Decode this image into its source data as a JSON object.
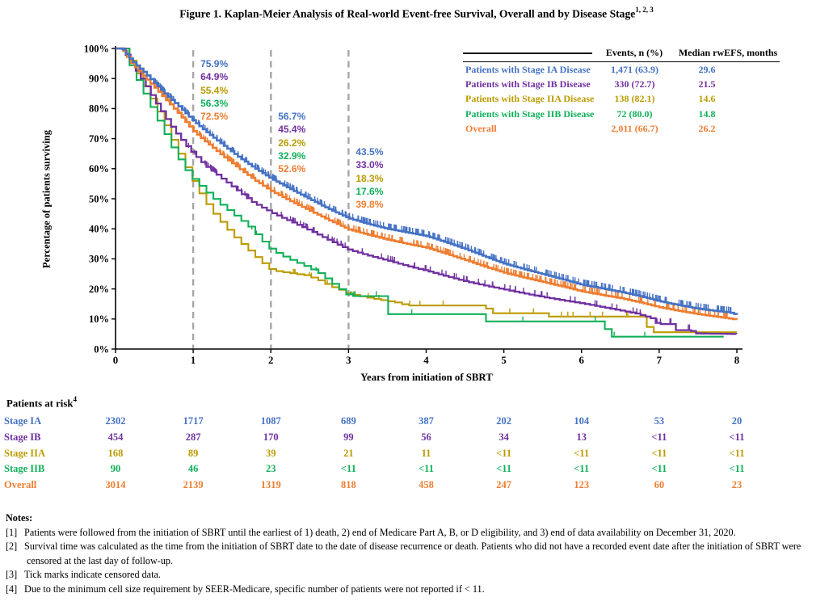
{
  "title": {
    "text": "Figure 1. Kaplan-Meier Analysis of Real-world Event-free Survival, Overall and by Disease Stage",
    "superscript": "1, 2, 3"
  },
  "colors": {
    "stage_ia": "#4472C4",
    "stage_ib": "#7030A0",
    "stage_iia": "#BC9B00",
    "stage_iib": "#10B059",
    "overall": "#ED7D31",
    "reference_line": "#A6A6A6",
    "axis": "#000000"
  },
  "chart_data": {
    "type": "line",
    "subtype": "kaplan-meier-step",
    "title": "Kaplan-Meier Analysis of Real-world Event-free Survival, Overall and by Disease Stage",
    "xlabel": "Years from initiation of SBRT",
    "ylabel": "Percentage of patients surviving",
    "xlim": [
      0,
      8
    ],
    "ylim": [
      0,
      100
    ],
    "grid": false,
    "legend_position": "top-right",
    "xticks": [
      "0",
      "1",
      "2",
      "3",
      "4",
      "5",
      "6",
      "7",
      "8"
    ],
    "yticks": [
      "0%",
      "10%",
      "20%",
      "30%",
      "40%",
      "50%",
      "60%",
      "70%",
      "80%",
      "90%",
      "100%"
    ],
    "reference_lines_x": [
      1,
      2,
      3
    ],
    "series": [
      {
        "name": "Stage IA",
        "color": "#4472C4",
        "survival_pct_at_years_1_2_3": [
          75.9,
          56.7,
          43.5
        ],
        "points": [
          [
            0,
            100
          ],
          [
            0.08,
            100
          ],
          [
            0.2,
            96
          ],
          [
            0.35,
            92.5
          ],
          [
            0.5,
            88.5
          ],
          [
            0.65,
            84.5
          ],
          [
            0.8,
            81
          ],
          [
            1,
            75.9
          ],
          [
            1.2,
            71.5
          ],
          [
            1.4,
            67.5
          ],
          [
            1.6,
            63.5
          ],
          [
            1.8,
            60
          ],
          [
            2,
            56.7
          ],
          [
            2.25,
            53.2
          ],
          [
            2.5,
            49.8
          ],
          [
            2.75,
            46.5
          ],
          [
            3,
            43.5
          ],
          [
            3.25,
            41.6
          ],
          [
            3.5,
            40
          ],
          [
            3.75,
            38.8
          ],
          [
            4,
            37.6
          ],
          [
            4.25,
            35.5
          ],
          [
            4.5,
            33.3
          ],
          [
            4.75,
            30.8
          ],
          [
            5,
            28.4
          ],
          [
            5.25,
            26.6
          ],
          [
            5.5,
            24.9
          ],
          [
            5.75,
            23.2
          ],
          [
            6,
            21.4
          ],
          [
            6.25,
            20.2
          ],
          [
            6.5,
            19
          ],
          [
            6.75,
            17.6
          ],
          [
            7,
            15.9
          ],
          [
            7.25,
            14.6
          ],
          [
            7.5,
            13.4
          ],
          [
            7.75,
            12.6
          ],
          [
            7.9,
            12.2
          ],
          [
            8,
            11.4
          ]
        ]
      },
      {
        "name": "Stage IB",
        "color": "#7030A0",
        "survival_pct_at_years_1_2_3": [
          64.9,
          45.4,
          33.0
        ],
        "points": [
          [
            0,
            100
          ],
          [
            0.08,
            100
          ],
          [
            0.2,
            95
          ],
          [
            0.3,
            91
          ],
          [
            0.4,
            87
          ],
          [
            0.5,
            82.5
          ],
          [
            0.6,
            78.5
          ],
          [
            0.7,
            74.5
          ],
          [
            0.8,
            71
          ],
          [
            0.9,
            67.8
          ],
          [
            1,
            64.9
          ],
          [
            1.15,
            61
          ],
          [
            1.35,
            57
          ],
          [
            1.55,
            53
          ],
          [
            1.75,
            49
          ],
          [
            2,
            45.4
          ],
          [
            2.25,
            42.4
          ],
          [
            2.5,
            39.4
          ],
          [
            2.75,
            36.1
          ],
          [
            3,
            33
          ],
          [
            3.25,
            31.1
          ],
          [
            3.5,
            29.4
          ],
          [
            3.75,
            27.6
          ],
          [
            4,
            26
          ],
          [
            4.25,
            24.2
          ],
          [
            4.5,
            22.5
          ],
          [
            4.75,
            21.1
          ],
          [
            5,
            19.8
          ],
          [
            5.25,
            18.5
          ],
          [
            5.5,
            17.3
          ],
          [
            5.75,
            16.2
          ],
          [
            6,
            15.2
          ],
          [
            6.25,
            14
          ],
          [
            6.5,
            12.8
          ],
          [
            6.7,
            11.8
          ],
          [
            6.9,
            10.2
          ],
          [
            6.97,
            8.3
          ],
          [
            7.17,
            8.3
          ],
          [
            7.21,
            6.3
          ],
          [
            7.4,
            6.3
          ],
          [
            7.44,
            5.2
          ],
          [
            8,
            5
          ]
        ]
      },
      {
        "name": "Stage IIA",
        "color": "#BC9B00",
        "survival_pct_at_years_1_2_3": [
          55.4,
          26.2,
          18.3
        ],
        "points": [
          [
            0,
            100
          ],
          [
            0.1,
            100
          ],
          [
            0.22,
            94
          ],
          [
            0.35,
            88
          ],
          [
            0.5,
            81
          ],
          [
            0.62,
            75
          ],
          [
            0.75,
            68
          ],
          [
            0.88,
            61.5
          ],
          [
            1,
            55.4
          ],
          [
            1.12,
            50
          ],
          [
            1.25,
            45.3
          ],
          [
            1.4,
            40.8
          ],
          [
            1.55,
            36.6
          ],
          [
            1.7,
            33
          ],
          [
            1.85,
            29.4
          ],
          [
            2,
            26.2
          ],
          [
            2.2,
            25.4
          ],
          [
            2.45,
            24.5
          ],
          [
            2.6,
            23
          ],
          [
            2.75,
            21
          ],
          [
            2.9,
            19.5
          ],
          [
            3,
            18.3
          ],
          [
            3.3,
            16.8
          ],
          [
            3.6,
            15.5
          ],
          [
            3.75,
            14.5
          ],
          [
            4.75,
            14.5
          ],
          [
            4.8,
            11.9
          ],
          [
            5.5,
            11.9
          ],
          [
            5.56,
            10.8
          ],
          [
            6.8,
            10.8
          ],
          [
            6.86,
            5.6
          ],
          [
            8,
            5.6
          ]
        ]
      },
      {
        "name": "Stage IIB",
        "color": "#10B059",
        "survival_pct_at_years_1_2_3": [
          56.3,
          32.9,
          17.6
        ],
        "points": [
          [
            0,
            100
          ],
          [
            0.1,
            100
          ],
          [
            0.2,
            93
          ],
          [
            0.3,
            88
          ],
          [
            0.4,
            83
          ],
          [
            0.5,
            78
          ],
          [
            0.6,
            73
          ],
          [
            0.7,
            68
          ],
          [
            0.8,
            63.5
          ],
          [
            0.9,
            59.5
          ],
          [
            1,
            56.3
          ],
          [
            1.15,
            52.5
          ],
          [
            1.3,
            49
          ],
          [
            1.5,
            45
          ],
          [
            1.7,
            41
          ],
          [
            1.85,
            36.8
          ],
          [
            2,
            32.9
          ],
          [
            2.2,
            30.2
          ],
          [
            2.4,
            28
          ],
          [
            2.6,
            25.5
          ],
          [
            2.8,
            21.5
          ],
          [
            3,
            17.6
          ],
          [
            3.42,
            17.6
          ],
          [
            3.47,
            11.6
          ],
          [
            4.7,
            11.6
          ],
          [
            4.75,
            9.2
          ],
          [
            6.28,
            9.2
          ],
          [
            6.32,
            4.1
          ],
          [
            7.84,
            4.1
          ],
          [
            7.87,
            0.3
          ]
        ]
      },
      {
        "name": "Overall",
        "color": "#ED7D31",
        "survival_pct_at_years_1_2_3": [
          72.5,
          52.6,
          39.8
        ],
        "points": [
          [
            0,
            100
          ],
          [
            0.08,
            100
          ],
          [
            0.2,
            95.2
          ],
          [
            0.35,
            91
          ],
          [
            0.5,
            87
          ],
          [
            0.65,
            82.8
          ],
          [
            0.8,
            78.6
          ],
          [
            1,
            72.5
          ],
          [
            1.2,
            68
          ],
          [
            1.4,
            63.8
          ],
          [
            1.6,
            59.8
          ],
          [
            1.8,
            56
          ],
          [
            2,
            52.6
          ],
          [
            2.25,
            49.2
          ],
          [
            2.5,
            46
          ],
          [
            2.75,
            42.8
          ],
          [
            3,
            39.8
          ],
          [
            3.25,
            38
          ],
          [
            3.5,
            36.4
          ],
          [
            3.75,
            35
          ],
          [
            4,
            33.7
          ],
          [
            4.25,
            31.7
          ],
          [
            4.5,
            29.6
          ],
          [
            4.75,
            27.4
          ],
          [
            5,
            25.4
          ],
          [
            5.25,
            23.8
          ],
          [
            5.5,
            22.3
          ],
          [
            5.75,
            20.8
          ],
          [
            6,
            19.2
          ],
          [
            6.25,
            18
          ],
          [
            6.5,
            16.9
          ],
          [
            6.75,
            15.5
          ],
          [
            7,
            13.9
          ],
          [
            7.25,
            12.7
          ],
          [
            7.5,
            11.6
          ],
          [
            7.75,
            10.7
          ],
          [
            8,
            9.8
          ]
        ]
      }
    ],
    "annotations": [
      {
        "at_year": 1,
        "labels": [
          "75.9%",
          "64.9%",
          "55.4%",
          "56.3%",
          "72.5%"
        ]
      },
      {
        "at_year": 2,
        "labels": [
          "56.7%",
          "45.4%",
          "26.2%",
          "32.9%",
          "52.6%"
        ]
      },
      {
        "at_year": 3,
        "labels": [
          "43.5%",
          "33.0%",
          "18.3%",
          "17.6%",
          "39.8%"
        ]
      }
    ]
  },
  "legend_table": {
    "headers": [
      "Events, n (%)",
      "Median rwEFS, months"
    ],
    "rows": [
      {
        "label": "Patients with Stage IA Disease",
        "events": "1,471 (63.9)",
        "median": "29.6",
        "color": "#4472C4"
      },
      {
        "label": "Patients with Stage IB Disease",
        "events": "330 (72.7)",
        "median": "21.5",
        "color": "#7030A0"
      },
      {
        "label": "Patients with Stage IIA Disease",
        "events": "138 (82.1)",
        "median": "14.6",
        "color": "#BC9B00"
      },
      {
        "label": "Patients with Stage IIB Disease",
        "events": "72 (80.0)",
        "median": "14.8",
        "color": "#10B059"
      },
      {
        "label": "Overall",
        "events": "2,011 (66.7)",
        "median": "26.2",
        "color": "#ED7D31"
      }
    ]
  },
  "risk_table": {
    "title": "Patients at risk",
    "superscript": "4",
    "rows": [
      {
        "label": "Stage IA",
        "color": "#4472C4",
        "values": [
          "2302",
          "1717",
          "1087",
          "689",
          "387",
          "202",
          "104",
          "53",
          "20"
        ]
      },
      {
        "label": "Stage IB",
        "color": "#7030A0",
        "values": [
          "454",
          "287",
          "170",
          "99",
          "56",
          "34",
          "13",
          "<11",
          "<11"
        ]
      },
      {
        "label": "Stage IIA",
        "color": "#BC9B00",
        "values": [
          "168",
          "89",
          "39",
          "21",
          "11",
          "<11",
          "<11",
          "<11",
          "<11"
        ]
      },
      {
        "label": "Stage IIB",
        "color": "#10B059",
        "values": [
          "90",
          "46",
          "23",
          "<11",
          "<11",
          "<11",
          "<11",
          "<11",
          "<11"
        ]
      },
      {
        "label": "Overall",
        "color": "#ED7D31",
        "values": [
          "3014",
          "2139",
          "1319",
          "818",
          "458",
          "247",
          "123",
          "60",
          "23"
        ]
      }
    ]
  },
  "notes": {
    "header": "Notes:",
    "items": [
      {
        "tag": "[1]",
        "text": "Patients were followed from the initiation of SBRT until the earliest of 1) death, 2) end of Medicare Part A, B, or D eligibility, and 3) end of data availability on December 31, 2020."
      },
      {
        "tag": "[2]",
        "text": "Survival time was calculated as the time from the initiation of SBRT date to the date of disease recurrence or death. Patients who did not have a recorded event date after the initiation of SBRT were censored at the last day of follow-up."
      },
      {
        "tag": "[3]",
        "text": "Tick marks indicate censored data."
      },
      {
        "tag": "[4]",
        "text": "Due to the minimum cell size requirement by SEER-Medicare, specific number of patients were not reported if < 11."
      }
    ]
  }
}
